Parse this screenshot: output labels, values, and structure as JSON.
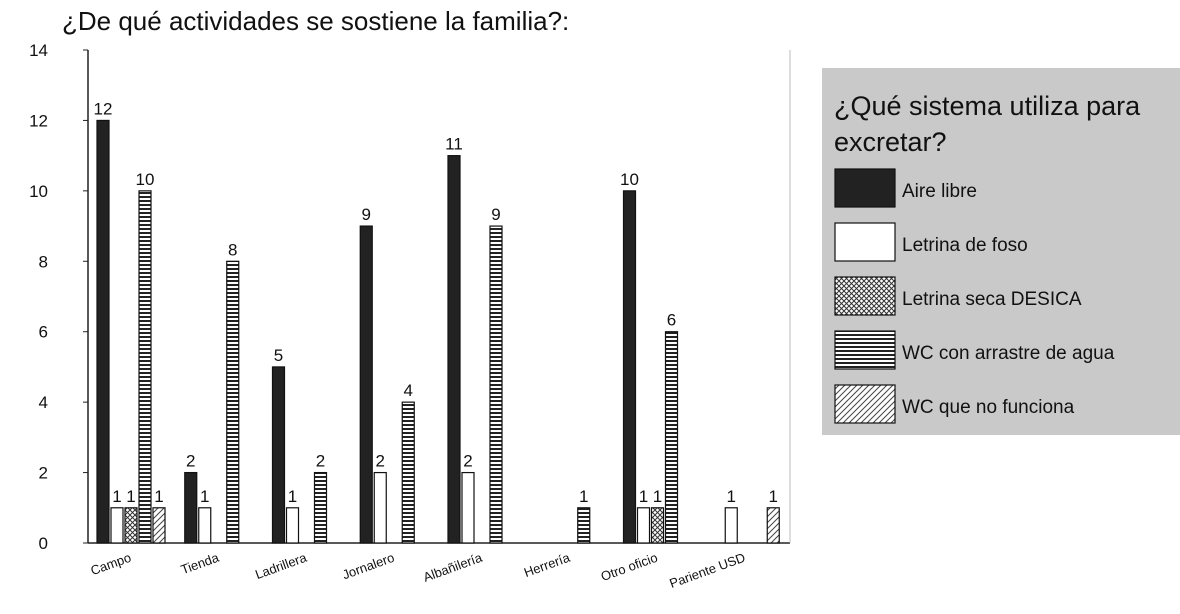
{
  "chart_data": {
    "type": "bar",
    "title": "¿De qué actividades se sostiene la familia?:",
    "legend_title": "¿Qué sistema utiliza para excretar?",
    "categories": [
      "Campo",
      "Tienda",
      "Ladrillera",
      "Jornalero",
      "Albañilería",
      "Herrería",
      "Otro oficio",
      "Pariente USD"
    ],
    "series": [
      {
        "name": "Aire libre",
        "color": "#222222",
        "pattern": "solid",
        "values": [
          12,
          2,
          5,
          9,
          11,
          null,
          10,
          null
        ]
      },
      {
        "name": "Letrina de foso",
        "color": "#555555",
        "pattern": "hatch-back",
        "values": [
          1,
          1,
          1,
          2,
          2,
          null,
          1,
          1
        ]
      },
      {
        "name": "Letrina seca DESICA",
        "color": "#333333",
        "pattern": "crosshatch",
        "values": [
          1,
          null,
          null,
          null,
          null,
          null,
          1,
          null
        ]
      },
      {
        "name": "WC con arrastre de agua",
        "color": "#222222",
        "pattern": "horizontal",
        "values": [
          10,
          8,
          2,
          4,
          9,
          1,
          6,
          null
        ]
      },
      {
        "name": "WC que no funciona",
        "color": "#444444",
        "pattern": "hatch-forward",
        "values": [
          1,
          null,
          null,
          null,
          null,
          null,
          null,
          1
        ]
      }
    ],
    "ylim": [
      0,
      14
    ],
    "yticks": [
      0,
      2,
      4,
      6,
      8,
      10,
      12,
      14
    ],
    "grid": false
  }
}
